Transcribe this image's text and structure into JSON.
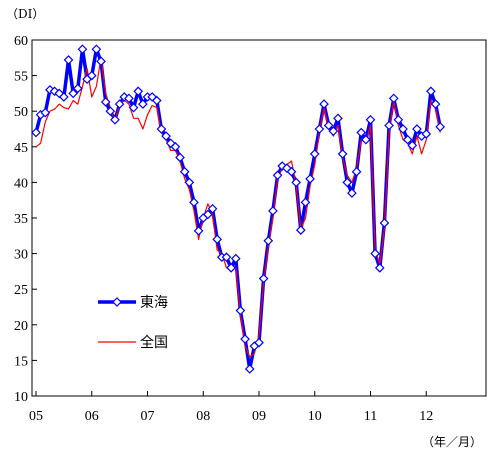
{
  "chart_data": {
    "type": "line",
    "ylabel": "（DI）",
    "xunit": "（年／月）",
    "ylim": [
      10,
      60
    ],
    "yticks": [
      10,
      15,
      20,
      25,
      30,
      35,
      40,
      45,
      50,
      55,
      60
    ],
    "xlim": [
      0,
      96
    ],
    "xticks": [
      {
        "label": "05",
        "month": 0
      },
      {
        "label": "06",
        "month": 12
      },
      {
        "label": "07",
        "month": 24
      },
      {
        "label": "08",
        "month": 36
      },
      {
        "label": "09",
        "month": 48
      },
      {
        "label": "10",
        "month": 60
      },
      {
        "label": "11",
        "month": 72
      },
      {
        "label": "12",
        "month": 84
      }
    ],
    "grid": false,
    "legend_position": "lower-left",
    "series": [
      {
        "name": "東海",
        "color": "#0000ff",
        "marker": "diamond",
        "values": [
          47.0,
          49.5,
          49.8,
          53.0,
          52.8,
          52.5,
          52.0,
          57.2,
          52.5,
          53.2,
          58.7,
          54.5,
          55.0,
          58.7,
          57.0,
          51.3,
          50.0,
          48.8,
          51.0,
          52.0,
          51.8,
          50.5,
          52.8,
          51.0,
          52.0,
          52.0,
          51.5,
          47.5,
          46.5,
          45.5,
          45.0,
          43.5,
          41.5,
          40.0,
          37.2,
          33.2,
          35.0,
          35.5,
          36.3,
          32.0,
          29.5,
          29.5,
          28.0,
          29.3,
          22.0,
          18.0,
          13.8,
          17.0,
          17.5,
          26.5,
          31.8,
          36.0,
          41.0,
          42.3,
          42.0,
          41.5,
          40.0,
          33.3,
          37.2,
          40.5,
          44.0,
          47.5,
          51.0,
          48.0,
          47.2,
          49.0,
          44.0,
          40.0,
          38.5,
          41.5,
          47.0,
          46.0,
          48.8,
          30.0,
          28.0,
          34.3,
          48.0,
          51.8,
          48.8,
          47.5,
          46.0,
          45.2,
          47.5,
          46.5,
          46.8,
          52.8,
          51.0,
          47.8
        ]
      },
      {
        "name": "全国",
        "color": "#ff0000",
        "marker": "none",
        "values": [
          45.0,
          45.5,
          48.5,
          50.0,
          50.3,
          51.0,
          50.5,
          50.3,
          51.5,
          51.0,
          53.5,
          56.0,
          52.0,
          53.5,
          57.5,
          52.5,
          50.5,
          48.5,
          51.0,
          51.5,
          51.0,
          49.0,
          49.0,
          47.5,
          49.5,
          50.8,
          50.5,
          47.0,
          46.0,
          44.5,
          44.5,
          43.0,
          40.5,
          39.0,
          36.0,
          32.0,
          35.0,
          37.0,
          35.5,
          30.5,
          30.0,
          28.0,
          28.5,
          28.0,
          21.5,
          17.0,
          15.5,
          16.0,
          18.5,
          26.0,
          31.0,
          35.0,
          40.5,
          42.0,
          42.5,
          43.0,
          39.5,
          33.5,
          35.0,
          39.5,
          42.5,
          47.0,
          50.5,
          47.5,
          46.5,
          48.0,
          43.5,
          41.0,
          40.0,
          42.0,
          46.0,
          45.5,
          48.0,
          30.5,
          28.5,
          33.5,
          47.0,
          51.5,
          48.0,
          46.0,
          45.5,
          44.0,
          46.5,
          44.0,
          46.0,
          51.5,
          50.5,
          47.0
        ]
      }
    ]
  }
}
